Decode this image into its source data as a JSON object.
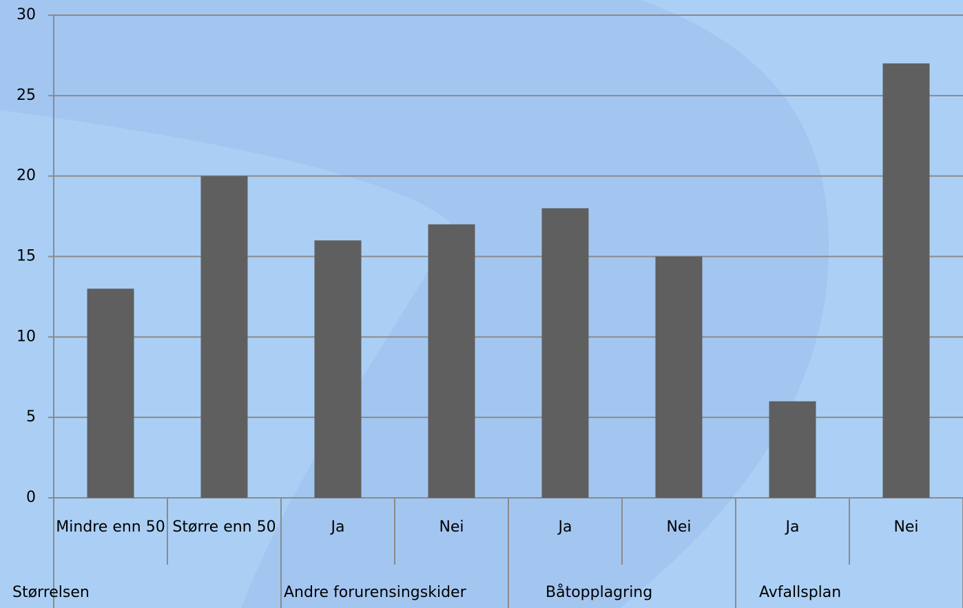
{
  "chart_data": {
    "type": "bar",
    "categories": [
      "Mindre enn 50",
      "Større enn 50",
      "Ja",
      "Nei",
      "Ja",
      "Nei",
      "Ja",
      "Nei"
    ],
    "groups": [
      "Størrelsen",
      "Andre forurensingskider",
      "Båtopplagring",
      "Avfallsplan"
    ],
    "values": [
      13,
      20,
      16,
      17,
      18,
      15,
      6,
      27
    ],
    "color": "#5f5f5f",
    "ylim": [
      0,
      30
    ],
    "yticks": [
      0,
      5,
      10,
      15,
      20,
      25,
      30
    ],
    "grid": true
  }
}
